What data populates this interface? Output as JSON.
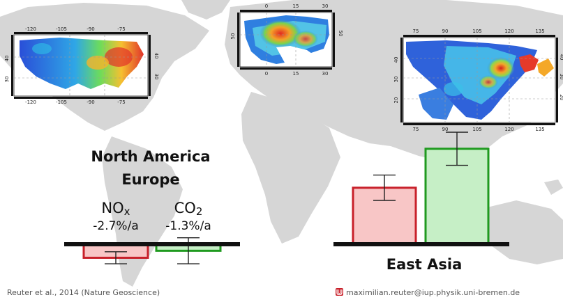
{
  "chart_data": [
    {
      "type": "bar",
      "region": "North America / Europe",
      "region_lines": [
        "North America",
        "Europe"
      ],
      "categories": [
        "NOx",
        "CO2"
      ],
      "labels": [
        {
          "main": "NO",
          "sub": "x",
          "change": "-2.7%/a"
        },
        {
          "main": "CO",
          "sub": "2",
          "change": "-1.3%/a"
        }
      ],
      "values": [
        -2.7,
        -1.3
      ],
      "error": [
        1.2,
        2.6
      ],
      "ylabel": "",
      "units": "%/a"
    },
    {
      "type": "bar",
      "region": "East Asia",
      "region_lines": [
        "East Asia"
      ],
      "categories": [
        "NOx",
        "CO2"
      ],
      "labels": [
        {
          "main": "NO",
          "sub": "x",
          "change": "+5.8%/a"
        },
        {
          "main": "CO",
          "sub": "2",
          "change": "+9.8%/a"
        }
      ],
      "values": [
        5.8,
        9.8
      ],
      "error": [
        1.3,
        1.7
      ],
      "ylabel": "",
      "units": "%/a"
    }
  ],
  "maps": [
    {
      "name": "north-america",
      "top_ticks": [
        "-120",
        "-105",
        "-90",
        "-75"
      ],
      "bottom_ticks": [
        "-120",
        "-105",
        "-90",
        "-75"
      ],
      "left_ticks": [
        "40",
        "30"
      ],
      "right_ticks": [
        "40",
        "30"
      ]
    },
    {
      "name": "europe",
      "top_ticks": [
        "0",
        "15",
        "30"
      ],
      "bottom_ticks": [
        "0",
        "15",
        "30"
      ],
      "left_ticks": [
        "50"
      ],
      "right_ticks": [
        "50"
      ]
    },
    {
      "name": "east-asia",
      "top_ticks": [
        "75",
        "90",
        "105",
        "120",
        "135"
      ],
      "bottom_ticks": [
        "75",
        "90",
        "105",
        "120",
        "135"
      ],
      "left_ticks": [
        "40",
        "30",
        "20"
      ],
      "right_ticks": [
        "40",
        "30",
        "20"
      ]
    }
  ],
  "colors": {
    "nox_fill": "#f8c6c6",
    "nox_border": "#c8202a",
    "co2_fill": "#c6efc6",
    "co2_border": "#1f9a1f",
    "map_land": "#d6d6d6",
    "map_sea": "#ffffff"
  },
  "footer": {
    "citation": "Reuter et al., 2014 (Nature Geoscience)",
    "contact": "maximilian.reuter@iup.physik.uni-bremen.de",
    "logo_icon": "university-logo-icon"
  }
}
